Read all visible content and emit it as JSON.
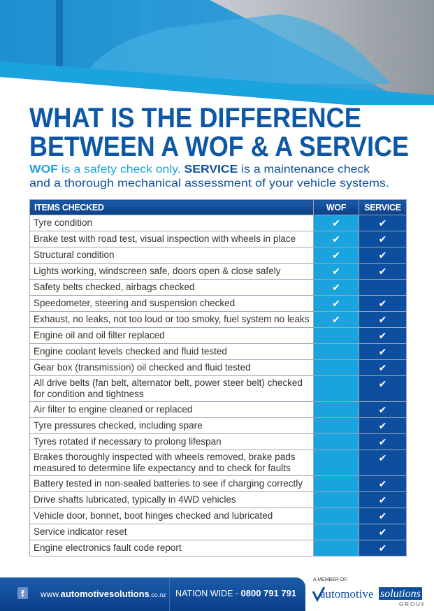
{
  "title": {
    "line1": "WHAT IS THE DIFFERENCE",
    "line2": "BETWEEN A WOF & A SERVICE"
  },
  "subtitle": {
    "wof": "WOF",
    "wof_text": " is a safety check only. ",
    "service": "SERVICE",
    "service_text": " is a maintenance check",
    "line2": "and a thorough mechanical assessment of your vehicle systems."
  },
  "table": {
    "headers": [
      "ITEMS CHECKED",
      "WOF",
      "SERVICE"
    ],
    "check": "✔",
    "rows": [
      {
        "item": "Tyre condition",
        "wof": true,
        "service": true
      },
      {
        "item": "Brake test with road test, visual inspection with wheels in place",
        "wof": true,
        "service": true
      },
      {
        "item": "Structural condition",
        "wof": true,
        "service": true
      },
      {
        "item": "Lights working, windscreen safe, doors open & close safely",
        "wof": true,
        "service": true
      },
      {
        "item": "Safety belts checked, airbags checked",
        "wof": true,
        "service": false
      },
      {
        "item": "Speedometer, steering and suspension checked",
        "wof": true,
        "service": true
      },
      {
        "item": "Exhaust, no leaks, not too loud or too smoky, fuel system no leaks",
        "wof": true,
        "service": true
      },
      {
        "item": "Engine oil and oil filter replaced",
        "wof": false,
        "service": true
      },
      {
        "item": "Engine coolant levels checked and fluid tested",
        "wof": false,
        "service": true
      },
      {
        "item": "Gear box (transmission) oil checked and fluid tested",
        "wof": false,
        "service": true
      },
      {
        "item": "All drive belts (fan belt, alternator belt, power steer belt) checked for condition and tightness",
        "wof": false,
        "service": true
      },
      {
        "item": "Air filter to engine cleaned or replaced",
        "wof": false,
        "service": true
      },
      {
        "item": "Tyre pressures checked, including spare",
        "wof": false,
        "service": true
      },
      {
        "item": "Tyres rotated if necessary to prolong lifespan",
        "wof": false,
        "service": true
      },
      {
        "item": "Brakes thoroughly inspected with wheels removed, brake pads measured to determine life expectancy and to check for faults",
        "wof": false,
        "service": true
      },
      {
        "item": "Battery tested in non-sealed batteries to see if charging correctly",
        "wof": false,
        "service": true
      },
      {
        "item": "Drive shafts lubricated, typically in 4WD vehicles",
        "wof": false,
        "service": true
      },
      {
        "item": "Vehicle door, bonnet, boot hinges checked and lubricated",
        "wof": false,
        "service": true
      },
      {
        "item": "Service indicator reset",
        "wof": false,
        "service": true
      },
      {
        "item": "Engine electronics fault code report",
        "wof": false,
        "service": true
      }
    ]
  },
  "footer": {
    "facebook_icon": "f",
    "web_prefix": "www.",
    "web_main": "automotivesolutions",
    "web_suffix": ".co.nz",
    "nation_label": "NATION WIDE",
    "nation_sep": " - ",
    "phone": "0800 791 791",
    "member_label": "A MEMBER OF:",
    "logo_left": "automotive",
    "logo_right": "solutions",
    "logo_group": "GROUP"
  },
  "colors": {
    "brand": "#0d4f9e",
    "light": "#1ba3dd"
  }
}
